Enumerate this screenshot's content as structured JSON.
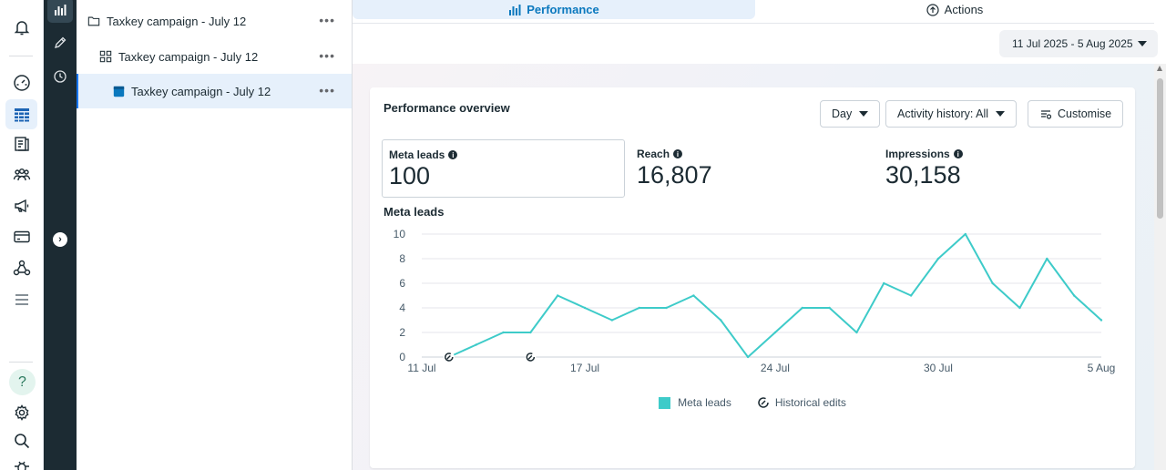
{
  "tree": {
    "items": [
      {
        "label": "Taxkey campaign - July 12",
        "type": "campaign"
      },
      {
        "label": "Taxkey campaign - July 12",
        "type": "ad-set"
      },
      {
        "label": "Taxkey campaign - July 12",
        "type": "ad"
      }
    ],
    "more_label": "•••"
  },
  "tabs": {
    "performance": "Performance",
    "actions": "Actions"
  },
  "date_range": "11 Jul 2025 - 5 Aug 2025",
  "overview": {
    "title": "Performance overview",
    "day_button": "Day",
    "activity_button": "Activity history: All",
    "customise_button": "Customise"
  },
  "metrics": [
    {
      "label": "Meta leads",
      "value": "100"
    },
    {
      "label": "Reach",
      "value": "16,807"
    },
    {
      "label": "Impressions",
      "value": "30,158"
    }
  ],
  "help_label": "?",
  "chart_data": {
    "type": "line",
    "title": "Meta leads",
    "x_ticks": [
      "11 Jul",
      "17 Jul",
      "24 Jul",
      "30 Jul",
      "5 Aug"
    ],
    "y_ticks": [
      0,
      2,
      4,
      6,
      8,
      10
    ],
    "ylim": [
      0,
      10
    ],
    "x": [
      "12 Jul",
      "13 Jul",
      "14 Jul",
      "15 Jul",
      "16 Jul",
      "17 Jul",
      "18 Jul",
      "19 Jul",
      "20 Jul",
      "21 Jul",
      "22 Jul",
      "23 Jul",
      "24 Jul",
      "25 Jul",
      "26 Jul",
      "27 Jul",
      "28 Jul",
      "29 Jul",
      "30 Jul",
      "31 Jul",
      "1 Aug",
      "2 Aug",
      "3 Aug",
      "4 Aug",
      "5 Aug"
    ],
    "series": [
      {
        "name": "Meta leads",
        "color": "#3ecbc9",
        "values": [
          0,
          1,
          2,
          2,
          5,
          4,
          3,
          4,
          4,
          5,
          3,
          0,
          2,
          4,
          4,
          2,
          6,
          5,
          8,
          10,
          6,
          4,
          8,
          5,
          3
        ]
      }
    ],
    "historical_edits": [
      "12 Jul",
      "15 Jul"
    ],
    "legend": [
      "Meta leads",
      "Historical edits"
    ],
    "legend_position": "bottom",
    "grid": true
  }
}
